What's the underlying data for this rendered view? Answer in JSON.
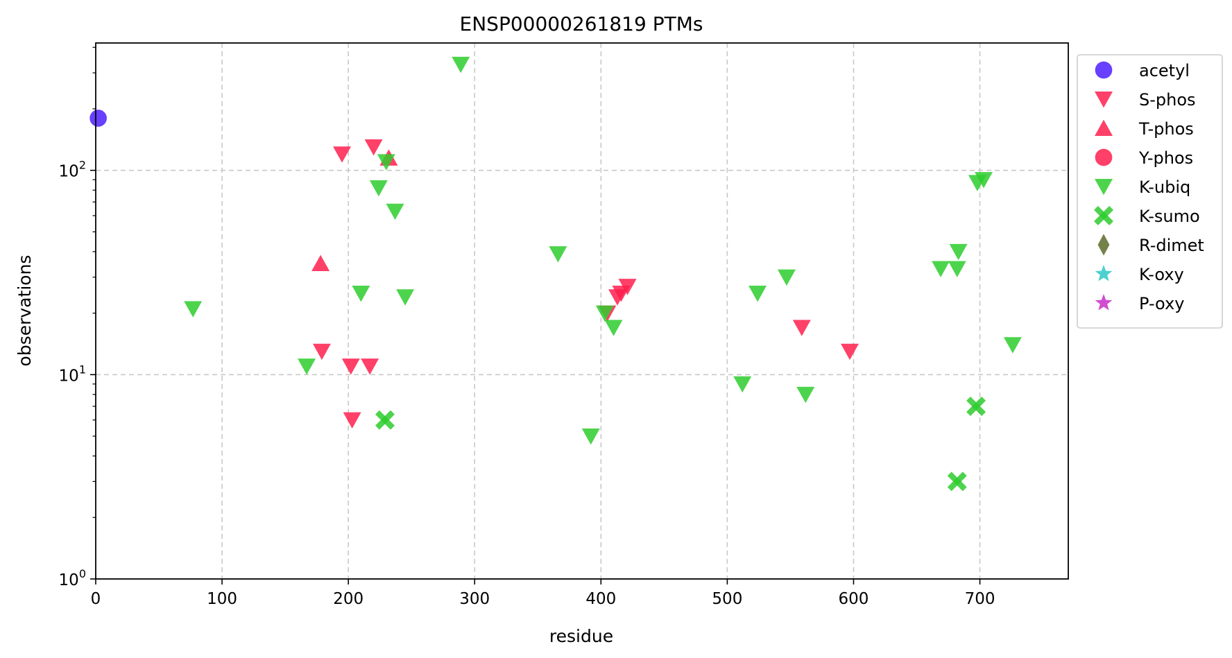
{
  "chart_data": {
    "type": "scatter",
    "title": "ENSP00000261819 PTMs",
    "xlabel": "residue",
    "ylabel": "observations",
    "xlim": [
      0,
      770
    ],
    "ylim": [
      1,
      420
    ],
    "yscale": "log",
    "grid": true,
    "legend_position": "outside-top-right",
    "x_ticks": [
      0,
      100,
      200,
      300,
      400,
      500,
      600,
      700
    ],
    "y_ticks": [
      {
        "value": 1,
        "base": "10",
        "exp": "0"
      },
      {
        "value": 10,
        "base": "10",
        "exp": "1"
      },
      {
        "value": 100,
        "base": "10",
        "exp": "2"
      }
    ],
    "series": [
      {
        "name": "acetyl",
        "marker": "circle",
        "color": "#4d1fff",
        "points": [
          [
            2,
            180
          ]
        ]
      },
      {
        "name": "S-phos",
        "marker": "triangle-down",
        "color": "#ff1f4d",
        "points": [
          [
            195,
            120
          ],
          [
            220,
            130
          ],
          [
            179,
            13
          ],
          [
            202,
            11
          ],
          [
            217,
            11
          ],
          [
            203,
            6
          ],
          [
            405,
            20
          ],
          [
            413,
            24
          ],
          [
            416,
            25
          ],
          [
            421,
            27
          ],
          [
            559,
            17
          ],
          [
            597,
            13
          ]
        ]
      },
      {
        "name": "T-phos",
        "marker": "triangle-up",
        "color": "#ff1f4d",
        "points": [
          [
            178,
            35
          ],
          [
            232,
            115
          ]
        ]
      },
      {
        "name": "Y-phos",
        "marker": "circle",
        "color": "#ff1f4d",
        "points": []
      },
      {
        "name": "K-ubiq",
        "marker": "triangle-down",
        "color": "#2ecc2e",
        "points": [
          [
            289,
            330
          ],
          [
            230,
            110
          ],
          [
            224,
            82
          ],
          [
            237,
            63
          ],
          [
            77,
            21
          ],
          [
            167,
            11
          ],
          [
            210,
            25
          ],
          [
            245,
            24
          ],
          [
            366,
            39
          ],
          [
            403,
            20
          ],
          [
            410,
            17
          ],
          [
            392,
            5
          ],
          [
            512,
            9
          ],
          [
            524,
            25
          ],
          [
            547,
            30
          ],
          [
            562,
            8
          ],
          [
            669,
            33
          ],
          [
            682,
            33
          ],
          [
            683,
            40
          ],
          [
            698,
            87
          ],
          [
            703,
            90
          ],
          [
            726,
            14
          ]
        ]
      },
      {
        "name": "K-sumo",
        "marker": "x",
        "color": "#2ecc2e",
        "points": [
          [
            229,
            6
          ],
          [
            697,
            7
          ],
          [
            682,
            3
          ]
        ]
      },
      {
        "name": "R-dimet",
        "marker": "diamond",
        "color": "#5a6b2a",
        "points": []
      },
      {
        "name": "K-oxy",
        "marker": "star",
        "color": "#2ec8c8",
        "points": []
      },
      {
        "name": "P-oxy",
        "marker": "star",
        "color": "#c82ec8",
        "points": []
      }
    ]
  }
}
